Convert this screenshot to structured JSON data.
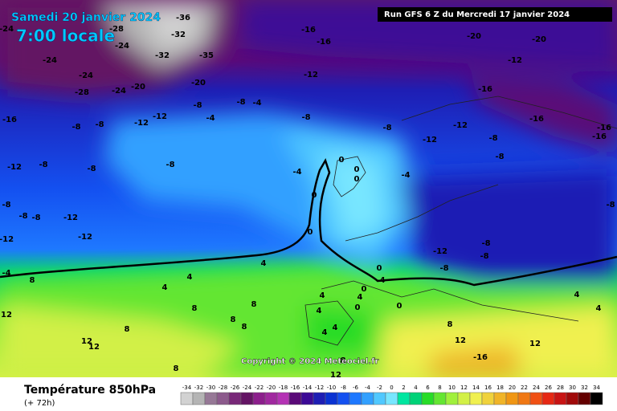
{
  "header": {
    "date": "Samedi 20 janvier 2024",
    "time": "7:00 locale",
    "run": "Run GFS 6 Z du Mercredi 17 janvier 2024"
  },
  "footer": {
    "title": "Température 850hPa",
    "lead": "(+ 72h)",
    "copyright": "Copyright © 2024 Meteociel.fr"
  },
  "legend": {
    "values": [
      -34,
      -32,
      -30,
      -28,
      -26,
      -24,
      -22,
      -20,
      -18,
      -16,
      -14,
      -12,
      -10,
      -8,
      -6,
      -4,
      -2,
      0,
      2,
      4,
      6,
      8,
      10,
      12,
      14,
      16,
      18,
      20,
      22,
      24,
      26,
      28,
      30,
      32,
      34
    ],
    "colors": [
      "#d2d2d2",
      "#b4b4b4",
      "#967896",
      "#8c5a8c",
      "#782878",
      "#641464",
      "#8c1e8c",
      "#a0289f",
      "#b432b4",
      "#5a0a78",
      "#3c0a96",
      "#1e1eb4",
      "#0a32d2",
      "#1450f0",
      "#1e78ff",
      "#32a0ff",
      "#50c8ff",
      "#78e6ff",
      "#00e6a0",
      "#00d278",
      "#28dc28",
      "#64e632",
      "#a0f03c",
      "#d2f046",
      "#f0f050",
      "#f0d23c",
      "#f0b428",
      "#f09614",
      "#f07814",
      "#f05014",
      "#e62814",
      "#c81414",
      "#a00a0a",
      "#640000",
      "#000000"
    ]
  },
  "map_labels": [
    -36,
    -32,
    -28,
    -24,
    -24,
    -16,
    -16,
    -20,
    -20,
    -12,
    -24,
    -32,
    -35,
    -24,
    -20,
    -20,
    -28,
    -24,
    -12,
    -16,
    -16,
    -16,
    -16,
    -16,
    -8,
    -8,
    -12,
    -12,
    -8,
    -8,
    -4,
    -4,
    -8,
    -8,
    -12,
    -8,
    -12,
    -8,
    -8,
    -12,
    -8,
    -8,
    -4,
    -4,
    0,
    0,
    0,
    0,
    0,
    -8,
    -8,
    -8,
    -12,
    -12,
    -12,
    -8,
    -8,
    -12,
    -8,
    -8,
    0,
    -4,
    -4,
    0,
    4,
    0,
    0,
    4,
    4,
    8,
    4,
    8,
    8,
    12,
    4,
    4,
    8,
    8,
    8,
    12,
    12,
    4,
    4,
    8,
    8,
    12,
    8,
    12,
    12,
    4,
    4,
    -16
  ]
}
